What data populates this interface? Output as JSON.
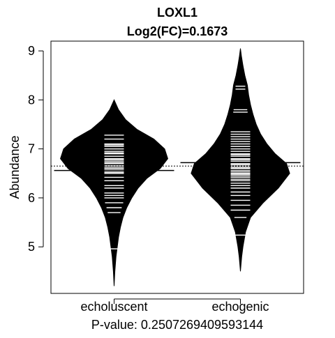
{
  "chart_data": {
    "type": "beanplot",
    "title": "LOXL1",
    "subtitle": "Log2(FC)=0.1673",
    "xlabel": "P-value: 0.2507269409593144",
    "ylabel": "Abundance",
    "ylim": [
      4.05,
      9.2
    ],
    "yticks": [
      5,
      6,
      7,
      8,
      9
    ],
    "categories": [
      "echoluscent",
      "echogenic"
    ],
    "overall_mean": 6.65,
    "groups": [
      {
        "name": "echoluscent",
        "mean": 6.56,
        "density": [
          [
            4.2,
            0.0
          ],
          [
            4.5,
            0.012
          ],
          [
            4.8,
            0.03
          ],
          [
            5.0,
            0.05
          ],
          [
            5.2,
            0.07
          ],
          [
            5.4,
            0.1
          ],
          [
            5.6,
            0.14
          ],
          [
            5.8,
            0.2
          ],
          [
            6.0,
            0.28
          ],
          [
            6.2,
            0.38
          ],
          [
            6.4,
            0.52
          ],
          [
            6.6,
            0.73
          ],
          [
            6.8,
            0.85
          ],
          [
            7.0,
            0.8
          ],
          [
            7.2,
            0.63
          ],
          [
            7.4,
            0.36
          ],
          [
            7.6,
            0.18
          ],
          [
            7.8,
            0.07
          ],
          [
            8.0,
            0.0
          ]
        ],
        "observations": [
          4.96,
          5.7,
          5.8,
          5.9,
          6.0,
          6.05,
          6.1,
          6.2,
          6.25,
          6.35,
          6.42,
          6.5,
          6.52,
          6.55,
          6.57,
          6.6,
          6.63,
          6.66,
          6.7,
          6.72,
          6.75,
          6.78,
          6.8,
          6.85,
          6.9,
          6.92,
          6.95,
          7.0,
          7.05,
          7.08,
          7.1,
          7.2,
          7.28
        ]
      },
      {
        "name": "echogenic",
        "mean": 6.72,
        "density": [
          [
            4.5,
            0.0
          ],
          [
            4.8,
            0.02
          ],
          [
            5.0,
            0.04
          ],
          [
            5.3,
            0.08
          ],
          [
            5.6,
            0.16
          ],
          [
            5.9,
            0.36
          ],
          [
            6.2,
            0.6
          ],
          [
            6.5,
            0.78
          ],
          [
            6.7,
            0.73
          ],
          [
            6.9,
            0.55
          ],
          [
            7.1,
            0.42
          ],
          [
            7.3,
            0.32
          ],
          [
            7.5,
            0.25
          ],
          [
            7.7,
            0.2
          ],
          [
            7.9,
            0.16
          ],
          [
            8.1,
            0.13
          ],
          [
            8.3,
            0.11
          ],
          [
            8.5,
            0.07
          ],
          [
            8.7,
            0.04
          ],
          [
            8.9,
            0.015
          ],
          [
            9.05,
            0.0
          ]
        ],
        "observations": [
          5.24,
          5.6,
          5.75,
          5.85,
          5.95,
          6.05,
          6.12,
          6.2,
          6.25,
          6.3,
          6.35,
          6.38,
          6.42,
          6.45,
          6.48,
          6.5,
          6.53,
          6.56,
          6.6,
          6.62,
          6.65,
          6.68,
          6.7,
          6.72,
          6.75,
          6.78,
          6.8,
          6.85,
          6.88,
          6.9,
          6.95,
          7.0,
          7.05,
          7.1,
          7.15,
          7.2,
          7.25,
          7.3,
          7.35,
          7.75,
          7.8,
          8.22,
          8.28
        ]
      }
    ]
  }
}
